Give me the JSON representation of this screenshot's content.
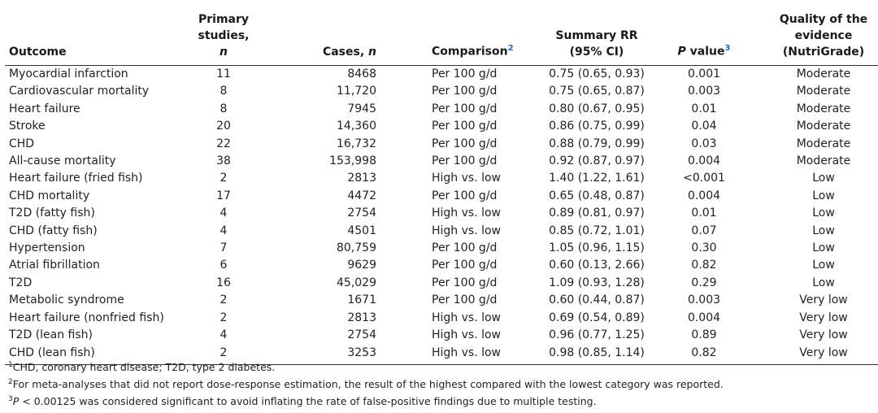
{
  "header": {
    "outcome": "Outcome",
    "primary_line1": "Primary",
    "primary_line2": "studies, n",
    "cases": "Cases, n",
    "comparison": "Comparison",
    "comparison_ref": "2",
    "rr_line1": "Summary RR",
    "rr_line2": "(95% CI)",
    "pvalue": "P value",
    "pvalue_ref": "3",
    "quality_line1": "Quality of the evidence",
    "quality_line2": "(NutriGrade)"
  },
  "rows": [
    {
      "outcome": "Myocardial infarction",
      "n": "11",
      "cases": "8468",
      "comparison": "Per 100 g/d",
      "rr": "0.75 (0.65, 0.93)",
      "p": "0.001",
      "quality": "Moderate"
    },
    {
      "outcome": "Cardiovascular mortality",
      "n": "8",
      "cases": "11,720",
      "comparison": "Per 100 g/d",
      "rr": "0.75 (0.65, 0.87)",
      "p": "0.003",
      "quality": "Moderate"
    },
    {
      "outcome": "Heart failure",
      "n": "8",
      "cases": "7945",
      "comparison": "Per 100 g/d",
      "rr": "0.80 (0.67, 0.95)",
      "p": "0.01",
      "quality": "Moderate"
    },
    {
      "outcome": "Stroke",
      "n": "20",
      "cases": "14,360",
      "comparison": "Per 100 g/d",
      "rr": "0.86 (0.75, 0.99)",
      "p": "0.04",
      "quality": "Moderate"
    },
    {
      "outcome": "CHD",
      "n": "22",
      "cases": "16,732",
      "comparison": "Per 100 g/d",
      "rr": "0.88 (0.79, 0.99)",
      "p": "0.03",
      "quality": "Moderate"
    },
    {
      "outcome": "All-cause mortality",
      "n": "38",
      "cases": "153,998",
      "comparison": "Per 100 g/d",
      "rr": "0.92 (0.87, 0.97)",
      "p": "0.004",
      "quality": "Moderate"
    },
    {
      "outcome": "Heart failure (fried fish)",
      "n": "2",
      "cases": "2813",
      "comparison": "High vs. low",
      "rr": "1.40 (1.22, 1.61)",
      "p": "<0.001",
      "quality": "Low"
    },
    {
      "outcome": "CHD mortality",
      "n": "17",
      "cases": "4472",
      "comparison": "Per 100 g/d",
      "rr": "0.65 (0.48, 0.87)",
      "p": "0.004",
      "quality": "Low"
    },
    {
      "outcome": "T2D (fatty fish)",
      "n": "4",
      "cases": "2754",
      "comparison": "High vs. low",
      "rr": "0.89 (0.81, 0.97)",
      "p": "0.01",
      "quality": "Low"
    },
    {
      "outcome": "CHD (fatty fish)",
      "n": "4",
      "cases": "4501",
      "comparison": "High vs. low",
      "rr": "0.85 (0.72, 1.01)",
      "p": "0.07",
      "quality": "Low"
    },
    {
      "outcome": "Hypertension",
      "n": "7",
      "cases": "80,759",
      "comparison": "Per 100 g/d",
      "rr": "1.05 (0.96, 1.15)",
      "p": "0.30",
      "quality": "Low"
    },
    {
      "outcome": "Atrial fibrillation",
      "n": "6",
      "cases": "9629",
      "comparison": "Per 100 g/d",
      "rr": "0.60 (0.13, 2.66)",
      "p": "0.82",
      "quality": "Low"
    },
    {
      "outcome": "T2D",
      "n": "16",
      "cases": "45,029",
      "comparison": "Per 100 g/d",
      "rr": "1.09 (0.93, 1.28)",
      "p": "0.29",
      "quality": "Low"
    },
    {
      "outcome": "Metabolic syndrome",
      "n": "2",
      "cases": "1671",
      "comparison": "Per 100 g/d",
      "rr": "0.60 (0.44, 0.87)",
      "p": "0.003",
      "quality": "Very low"
    },
    {
      "outcome": "Heart failure (nonfried fish)",
      "n": "2",
      "cases": "2813",
      "comparison": "High vs. low",
      "rr": "0.69 (0.54, 0.89)",
      "p": "0.004",
      "quality": "Very low"
    },
    {
      "outcome": "T2D (lean fish)",
      "n": "4",
      "cases": "2754",
      "comparison": "High vs. low",
      "rr": "0.96 (0.77, 1.25)",
      "p": "0.89",
      "quality": "Very low"
    },
    {
      "outcome": "CHD (lean fish)",
      "n": "2",
      "cases": "3253",
      "comparison": "High vs. low",
      "rr": "0.98 (0.85, 1.14)",
      "p": "0.82",
      "quality": "Very low"
    }
  ],
  "footnotes": [
    {
      "mark": "1",
      "text": "CHD, coronary heart disease; T2D, type 2 diabetes."
    },
    {
      "mark": "2",
      "text": "For meta-analyses that did not report dose-response estimation, the result of the highest compared with the lowest category was reported."
    },
    {
      "mark": "3",
      "text_p": "P",
      "text": " < 0.00125 was considered significant to avoid inflating the rate of false-positive findings due to multiple testing."
    }
  ],
  "colors": {
    "ref_link": "#2266cc",
    "rule": "#333333",
    "text": "#222222"
  }
}
